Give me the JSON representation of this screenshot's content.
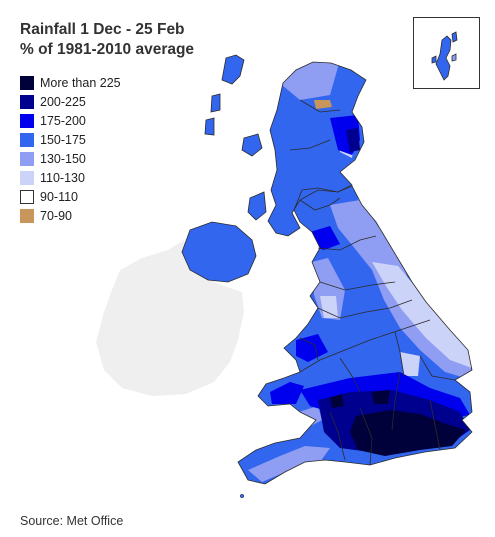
{
  "title": {
    "line1": "Rainfall 1 Dec - 25 Feb",
    "line2": "% of 1981-2010 average"
  },
  "legend": [
    {
      "label": "More than 225",
      "color": "#00003a"
    },
    {
      "label": "200-225",
      "color": "#00008f"
    },
    {
      "label": "175-200",
      "color": "#0000ee"
    },
    {
      "label": "150-175",
      "color": "#3366ee"
    },
    {
      "label": "130-150",
      "color": "#8f9ef2"
    },
    {
      "label": "110-130",
      "color": "#ccd3f8"
    },
    {
      "label": "90-110",
      "color": "#ffffff"
    },
    {
      "label": "70-90",
      "color": "#c8965a"
    }
  ],
  "source": "Source: Met Office",
  "colors": {
    "ireland": "#efefef",
    "border": "#2b2b2b"
  }
}
